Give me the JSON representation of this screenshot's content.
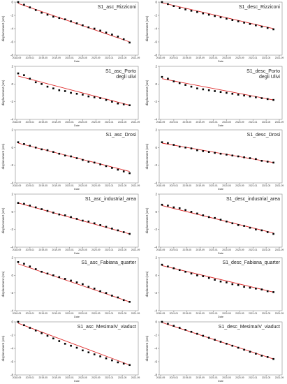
{
  "chart_data": [
    {
      "type": "scatter",
      "title": "S1_asc_Rizziconi",
      "title2": "",
      "ylabel": "displacement (cm)",
      "xlabel": "Date",
      "ylim": [
        -8,
        0
      ],
      "yticks": [
        "0",
        "-2",
        "-4",
        "-6",
        "-8"
      ],
      "xticks": [
        "2018-09",
        "2019-01",
        "2019-05",
        "2019-09",
        "2020-01",
        "2020-05",
        "2020-09",
        "2021-01",
        "2021-05",
        "2021-09"
      ],
      "x": [
        0,
        2,
        4,
        6,
        8,
        10,
        12,
        14,
        16,
        18,
        20,
        22,
        24,
        26,
        28,
        30,
        32,
        34,
        36,
        38
      ],
      "y": [
        0,
        -0.4,
        -0.8,
        -1.2,
        -1.6,
        -1.9,
        -2.2,
        -2.4,
        -2.6,
        -2.9,
        -3.2,
        -3.5,
        -3.8,
        -4.0,
        -4.3,
        -4.6,
        -4.9,
        -5.2,
        -5.6,
        -6.1
      ],
      "trend": [
        -0.2,
        -6.0
      ],
      "hasLine": true
    },
    {
      "type": "scatter",
      "title": "S1_desc_Rizziconi",
      "title2": "",
      "ylabel": "displacement (cm)",
      "xlabel": "Date",
      "ylim": [
        -8,
        0
      ],
      "yticks": [
        "0",
        "-2",
        "-4",
        "-6",
        "-8"
      ],
      "xticks": [
        "2018-09",
        "2019-01",
        "2019-05",
        "2019-09",
        "2020-01",
        "2020-05",
        "2020-09",
        "2021-01",
        "2021-05",
        "2021-09"
      ],
      "x": [
        0,
        2,
        4,
        6,
        8,
        10,
        12,
        14,
        16,
        18,
        20,
        22,
        24,
        26,
        28,
        30,
        32,
        34,
        36,
        38
      ],
      "y": [
        0,
        -0.3,
        -0.6,
        -0.9,
        -1.1,
        -1.3,
        -1.5,
        -1.7,
        -1.9,
        -2.1,
        -2.3,
        -2.5,
        -2.7,
        -2.9,
        -3.1,
        -3.3,
        -3.5,
        -3.7,
        -3.9,
        -4.1
      ],
      "trend": [
        -0.1,
        -4.0
      ],
      "hasLine": true
    },
    {
      "type": "scatter",
      "title": "S1_asc_Porto",
      "title2": "degli ulivi",
      "ylabel": "displacement (cm)",
      "xlabel": "Date",
      "ylim": [
        -4,
        2
      ],
      "yticks": [
        "2",
        "0",
        "-2",
        "-4"
      ],
      "xticks": [
        "2018-09",
        "2019-01",
        "2019-05",
        "2019-09",
        "2020-01",
        "2020-05",
        "2020-09",
        "2021-01",
        "2021-05",
        "2021-09"
      ],
      "x": [
        0,
        2,
        4,
        6,
        8,
        10,
        12,
        14,
        16,
        18,
        20,
        22,
        24,
        26,
        28,
        30,
        32,
        34,
        36,
        38
      ],
      "y": [
        1.2,
        1.0,
        0.6,
        0.2,
        0.0,
        -0.3,
        -0.5,
        -0.7,
        -0.8,
        -1.0,
        -1.1,
        -1.2,
        -1.4,
        -1.5,
        -1.6,
        -1.8,
        -2.0,
        -2.2,
        -2.3,
        -2.4
      ],
      "trend": [
        0.9,
        -2.4
      ],
      "hasLine": true
    },
    {
      "type": "scatter",
      "title": "S1_desc_Porto",
      "title2": "degli Ulivi",
      "ylabel": "displacement (cm)",
      "xlabel": "Date",
      "ylim": [
        -4,
        2
      ],
      "yticks": [
        "2",
        "0",
        "-2",
        "-4"
      ],
      "xticks": [
        "2018-09",
        "2019-01",
        "2019-05",
        "2019-09",
        "2020-01",
        "2020-05",
        "2020-09",
        "2021-01",
        "2021-05",
        "2021-09"
      ],
      "x": [
        0,
        2,
        4,
        6,
        8,
        10,
        12,
        14,
        16,
        18,
        20,
        22,
        24,
        26,
        28,
        30,
        32,
        34,
        36,
        38
      ],
      "y": [
        0.8,
        0.6,
        0.3,
        0.1,
        -0.1,
        -0.3,
        -0.5,
        -0.6,
        -0.7,
        -0.8,
        -0.9,
        -1.0,
        -1.1,
        -1.2,
        -1.3,
        -1.4,
        -1.5,
        -1.6,
        -1.7,
        -1.8
      ],
      "trend": [
        0.6,
        -1.8
      ],
      "hasLine": true
    },
    {
      "type": "scatter",
      "title": "S1_asc_Drosi",
      "title2": "",
      "ylabel": "displacement (cm)",
      "xlabel": "Date",
      "ylim": [
        -4,
        2
      ],
      "yticks": [
        "2",
        "0",
        "-2",
        "-4"
      ],
      "xticks": [
        "2018-09",
        "2019-01",
        "2019-05",
        "2019-09",
        "2020-01",
        "2020-05",
        "2020-09",
        "2021-01",
        "2021-05",
        "2021-09"
      ],
      "x": [
        0,
        2,
        4,
        6,
        8,
        10,
        12,
        14,
        16,
        18,
        20,
        22,
        24,
        26,
        28,
        30,
        32,
        34,
        36,
        38
      ],
      "y": [
        0.6,
        0.4,
        0.2,
        0.0,
        -0.2,
        -0.3,
        -0.5,
        -0.7,
        -0.9,
        -1.0,
        -1.2,
        -1.4,
        -1.6,
        -1.7,
        -1.9,
        -2.1,
        -2.3,
        -2.5,
        -2.7,
        -2.9
      ],
      "trend": [
        0.5,
        -2.7
      ],
      "hasLine": true
    },
    {
      "type": "scatter",
      "title": "S1_desc_Drosi",
      "title2": "",
      "ylabel": "displacement (cm)",
      "xlabel": "Date",
      "ylim": [
        -4,
        2
      ],
      "yticks": [
        "2",
        "0",
        "-2",
        "-4"
      ],
      "xticks": [
        "2018-09",
        "2019-01",
        "2019-05",
        "2019-09",
        "2020-01",
        "2020-05",
        "2020-09",
        "2021-01",
        "2021-05",
        "2021-09"
      ],
      "x": [
        0,
        2,
        4,
        6,
        8,
        10,
        12,
        14,
        16,
        18,
        20,
        22,
        24,
        26,
        28,
        30,
        32,
        34,
        36,
        38
      ],
      "y": [
        0.6,
        0.5,
        0.3,
        0.1,
        0.0,
        -0.1,
        -0.3,
        -0.4,
        -0.5,
        -0.6,
        -0.7,
        -0.8,
        -0.9,
        -1.0,
        -1.1,
        -1.2,
        -1.3,
        -1.5,
        -1.6,
        -1.7
      ],
      "trend": [
        0.5,
        -1.7
      ],
      "hasLine": true
    },
    {
      "type": "scatter",
      "title": "S1_asc_industrial_area",
      "title2": "",
      "ylabel": "displacement (cm)",
      "xlabel": "Date",
      "ylim": [
        -4,
        2
      ],
      "yticks": [
        "2",
        "0",
        "-2",
        "-4"
      ],
      "xticks": [
        "2018-09",
        "2019-01",
        "2019-05",
        "2019-09",
        "2020-01",
        "2020-05",
        "2020-09",
        "2021-01",
        "2021-05",
        "2021-09"
      ],
      "x": [
        0,
        2,
        4,
        6,
        8,
        10,
        12,
        14,
        16,
        18,
        20,
        22,
        24,
        26,
        28,
        30,
        32,
        34,
        36,
        38
      ],
      "y": [
        1.0,
        0.9,
        0.7,
        0.5,
        0.3,
        0.1,
        -0.1,
        -0.3,
        -0.4,
        -0.6,
        -0.8,
        -1.0,
        -1.1,
        -1.3,
        -1.5,
        -1.7,
        -1.9,
        -2.1,
        -2.3,
        -2.5
      ],
      "trend": [
        1.0,
        -2.5
      ],
      "hasLine": true
    },
    {
      "type": "scatter",
      "title": "S1_desc_industrial_area",
      "title2": "",
      "ylabel": "displacement (cm)",
      "xlabel": "Date",
      "ylim": [
        -4,
        2
      ],
      "yticks": [
        "2",
        "0",
        "-2",
        "-4"
      ],
      "xticks": [
        "2018-09",
        "2019-01",
        "2019-05",
        "2019-09",
        "2020-01",
        "2020-05",
        "2020-09",
        "2021-01",
        "2021-05",
        "2021-09"
      ],
      "x": [
        0,
        2,
        4,
        6,
        8,
        10,
        12,
        14,
        16,
        18,
        20,
        22,
        24,
        26,
        28,
        30,
        32,
        34,
        36,
        38
      ],
      "y": [
        0.8,
        0.7,
        0.5,
        0.4,
        0.2,
        0.0,
        -0.2,
        -0.4,
        -0.6,
        -0.7,
        -0.9,
        -1.1,
        -1.3,
        -1.5,
        -1.6,
        -1.8,
        -2.0,
        -2.1,
        -2.3,
        -2.5
      ],
      "trend": [
        0.7,
        -2.4
      ],
      "hasLine": true
    },
    {
      "type": "scatter",
      "title": "S1_asc_Fabiana_quarter",
      "title2": "",
      "ylabel": "displacement (cm)",
      "xlabel": "Date",
      "ylim": [
        -4,
        2
      ],
      "yticks": [
        "2",
        "0",
        "-2",
        "-4"
      ],
      "xticks": [
        "2018-09",
        "2019-01",
        "2019-05",
        "2019-09",
        "2020-01",
        "2020-05",
        "2020-09",
        "2021-01",
        "2021-05",
        "2021-09"
      ],
      "x": [
        0,
        2,
        4,
        6,
        8,
        10,
        12,
        14,
        16,
        18,
        20,
        22,
        24,
        26,
        28,
        30,
        32,
        34,
        36,
        38
      ],
      "y": [
        1.5,
        1.3,
        1.0,
        0.7,
        0.4,
        0.2,
        0.0,
        -0.2,
        -0.4,
        -0.6,
        -0.8,
        -1.0,
        -1.3,
        -1.5,
        -1.8,
        -2.0,
        -2.3,
        -2.5,
        -2.8,
        -3.0
      ],
      "trend": [
        1.3,
        -3.0
      ],
      "hasLine": true
    },
    {
      "type": "scatter",
      "title": "S1_desc_Fabiana_quarter",
      "title2": "",
      "ylabel": "displacement (cm)",
      "xlabel": "Date",
      "ylim": [
        -4,
        2
      ],
      "yticks": [
        "2",
        "0",
        "-2",
        "-4"
      ],
      "xticks": [
        "2018-09",
        "2019-01",
        "2019-05",
        "2019-09",
        "2020-01",
        "2020-05",
        "2020-09",
        "2021-01",
        "2021-05",
        "2021-09"
      ],
      "x": [
        0,
        2,
        4,
        6,
        8,
        10,
        12,
        14,
        16,
        18,
        20,
        22,
        24,
        26,
        28,
        30,
        32,
        34,
        36,
        38
      ],
      "y": [
        1.2,
        1.0,
        0.8,
        0.6,
        0.4,
        0.2,
        0.0,
        -0.1,
        -0.3,
        -0.5,
        -0.7,
        -0.8,
        -1.0,
        -1.1,
        -1.3,
        -1.4,
        -1.5,
        -1.6,
        -1.8,
        -1.9
      ],
      "trend": [
        1.1,
        -1.9
      ],
      "hasLine": true
    },
    {
      "type": "scatter",
      "title": "S1_asc_MesimaIV_viaduct",
      "title2": "",
      "ylabel": "displacement (cm)",
      "xlabel": "Date",
      "ylim": [
        -8,
        0
      ],
      "yticks": [
        "0",
        "-2",
        "-4",
        "-6",
        "-8"
      ],
      "xticks": [
        "2018-09",
        "2019-01",
        "2019-05",
        "2019-09",
        "2020-01",
        "2020-05",
        "2020-09",
        "2021-01",
        "2021-05",
        "2021-09"
      ],
      "x": [
        0,
        2,
        4,
        6,
        8,
        10,
        12,
        14,
        16,
        18,
        20,
        22,
        24,
        26,
        28,
        30,
        32,
        34,
        36,
        38
      ],
      "y": [
        0,
        -0.5,
        -0.9,
        -1.3,
        -1.7,
        -2.1,
        -2.5,
        -2.9,
        -3.3,
        -3.6,
        -3.9,
        -4.3,
        -4.6,
        -4.9,
        -5.2,
        -5.5,
        -5.8,
        -6.1,
        -6.3,
        -6.5
      ],
      "trend": [
        -0.2,
        -6.5
      ],
      "hasLine": true
    },
    {
      "type": "scatter",
      "title": "S1_desc_MesimaIV_viaduct",
      "title2": "",
      "ylabel": "displacement (cm)",
      "xlabel": "Date",
      "ylim": [
        -8,
        0
      ],
      "yticks": [
        "0",
        "-2",
        "-4",
        "-6",
        "-8"
      ],
      "xticks": [
        "2018-09",
        "2019-01",
        "2019-05",
        "2019-09",
        "2020-01",
        "2020-05",
        "2020-09",
        "2021-01",
        "2021-05",
        "2021-09"
      ],
      "x": [
        0,
        2,
        4,
        6,
        8,
        10,
        12,
        14,
        16,
        18,
        20,
        22,
        24,
        26,
        28,
        30,
        32,
        34,
        36,
        38
      ],
      "y": [
        0,
        -0.3,
        -0.6,
        -0.9,
        -1.2,
        -1.5,
        -1.8,
        -2.1,
        -2.4,
        -2.7,
        -3.0,
        -3.3,
        -3.6,
        -3.9,
        -4.2,
        -4.5,
        -4.8,
        -5.1,
        -5.3,
        -5.6
      ],
      "trend": [
        -0.1,
        -5.6
      ],
      "hasLine": true
    }
  ],
  "colors": {
    "points": "#000000",
    "trend": "#e03030",
    "frame": "#888888"
  }
}
